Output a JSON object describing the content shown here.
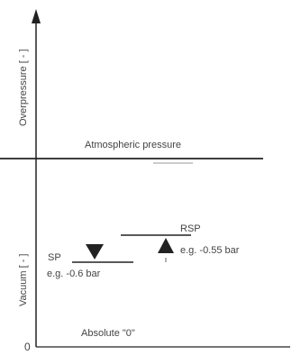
{
  "axis": {
    "overpressure_label": "Overpressure [ - ]",
    "vacuum_label": "Vacuum [ - ]",
    "zero_label": "0"
  },
  "lines": {
    "atmospheric_label": "Atmospheric pressure",
    "absolute_label": "Absolute \"0\""
  },
  "sp": {
    "name": "SP",
    "example": "e.g. -0.6 bar"
  },
  "rsp": {
    "name": "RSP",
    "example": "e.g. -0.55 bar"
  },
  "colors": {
    "line": "#222222",
    "text": "#444444"
  }
}
